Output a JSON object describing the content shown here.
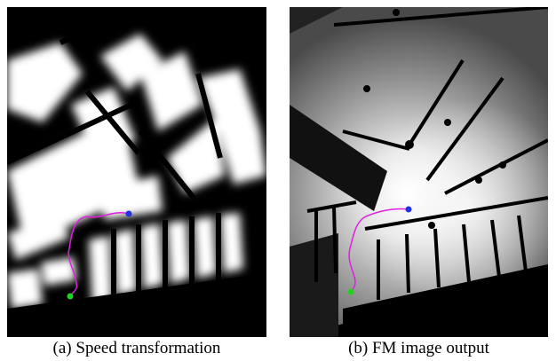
{
  "panels": [
    {
      "label": "(a)",
      "caption": "Speed transformation"
    },
    {
      "label": "(b)",
      "caption": "FM image output"
    }
  ],
  "colors": {
    "path": "#e01ee0",
    "start_marker": "#21d321",
    "goal_marker": "#2233e0",
    "background": "#000000",
    "free_space": "#ffffff"
  }
}
